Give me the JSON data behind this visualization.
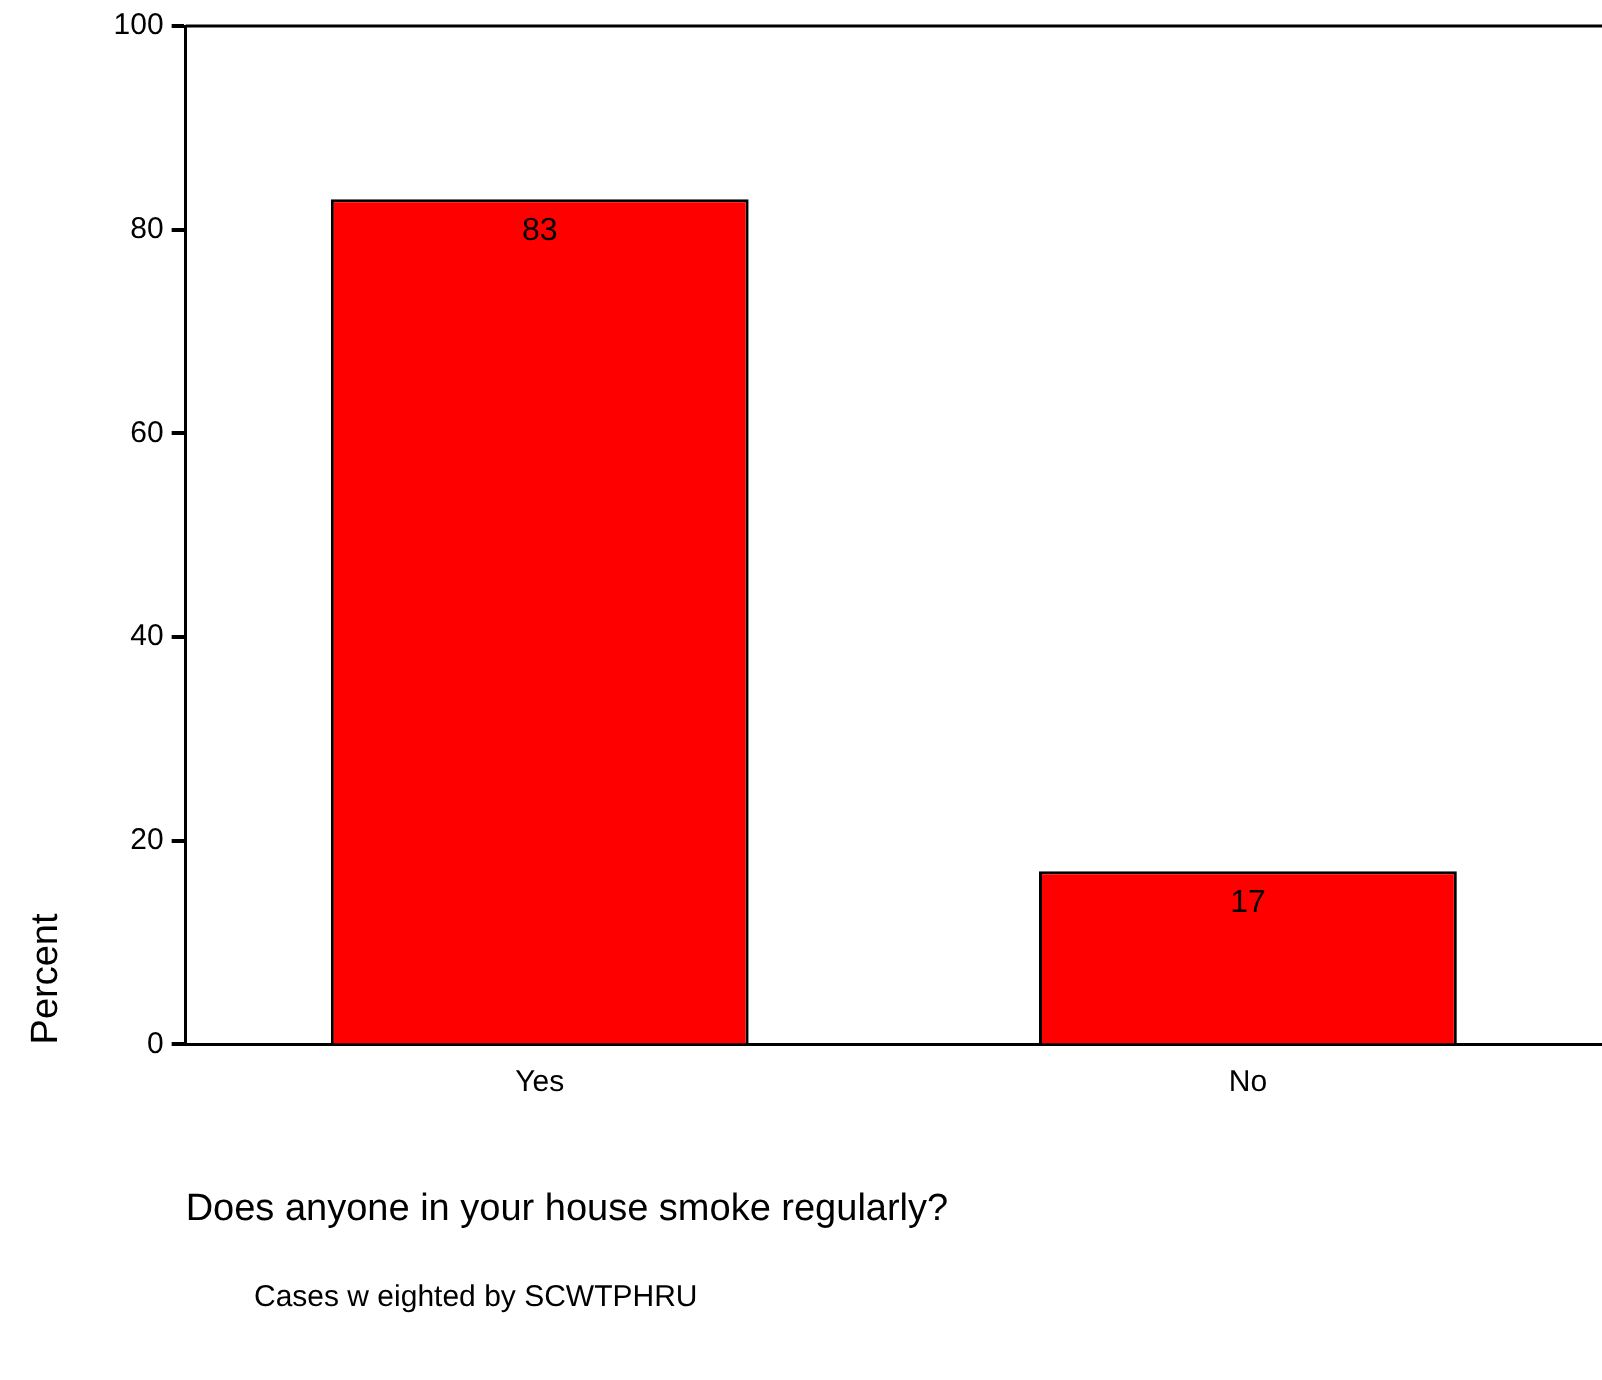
{
  "chart_data": {
    "type": "bar",
    "xlabel": "Does anyone in your house smoke regularly?",
    "ylabel": "Percent",
    "categories": [
      "Yes",
      "No"
    ],
    "values": [
      83,
      17
    ],
    "color": "#ff0000",
    "ylim": [
      0,
      100
    ],
    "yticks": [
      0,
      20,
      40,
      60,
      80,
      100
    ],
    "grid": false,
    "legend": false,
    "data_labels": true,
    "annotations": [
      "Cases w eighted by SCWTPHRU"
    ]
  }
}
